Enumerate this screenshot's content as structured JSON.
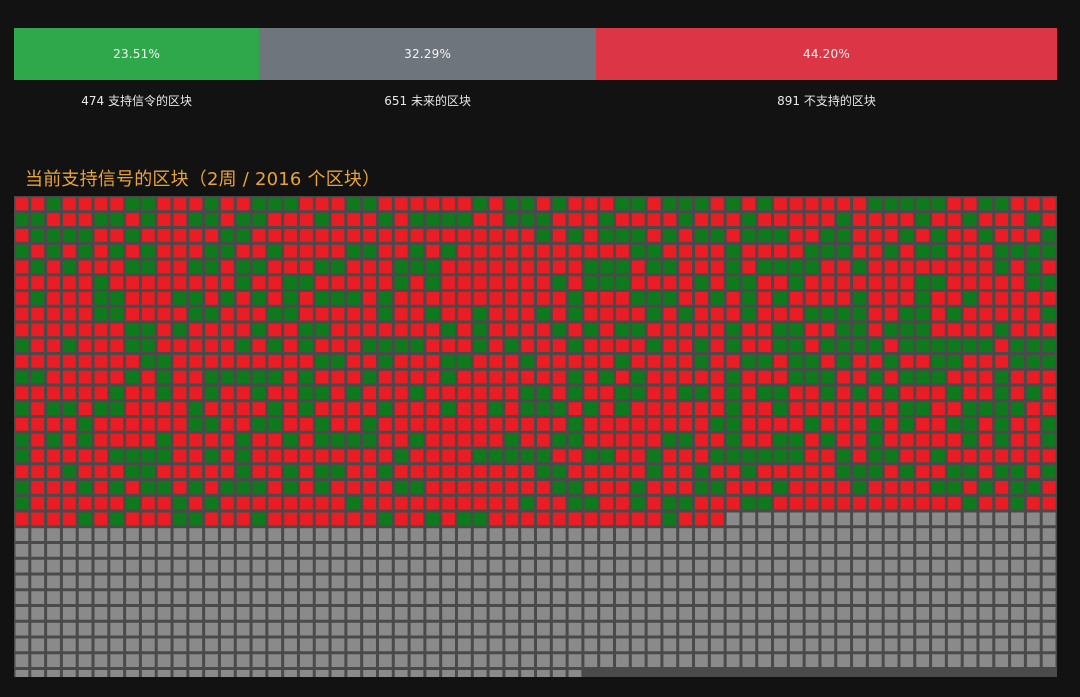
{
  "summary": {
    "segments": [
      {
        "key": "signal",
        "percent_label": "23.51%",
        "percent": 23.51,
        "count_label": "474 支持信令的区块",
        "color": "#2ea84a"
      },
      {
        "key": "future",
        "percent_label": "32.29%",
        "percent": 32.29,
        "count_label": "651 未来的区块",
        "color": "#6e757c"
      },
      {
        "key": "no_signal",
        "percent_label": "44.20%",
        "percent": 44.2,
        "count_label": "891 不支持的区块",
        "color": "#dc3545"
      }
    ]
  },
  "grid": {
    "title": "当前支持信号的区块（2周 / 2016 个区块）",
    "total_blocks": 2016,
    "mined_blocks": 1365,
    "signal_blocks": 474,
    "future_blocks": 651,
    "colors": {
      "signal": "#0e7a1c",
      "no_signal": "#ea1c24",
      "future": "#8a8a8a",
      "background": "#4a4a4a"
    }
  }
}
